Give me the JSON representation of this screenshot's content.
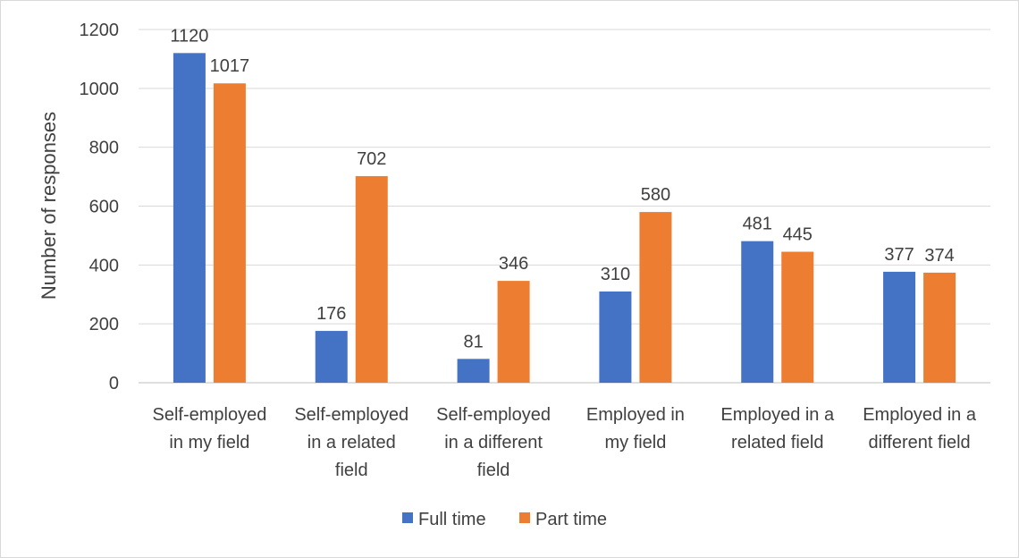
{
  "chart_data": {
    "type": "bar",
    "title": "",
    "xlabel": "",
    "ylabel": "Number of responses",
    "ylim": [
      0,
      1200
    ],
    "yticks": [
      0,
      200,
      400,
      600,
      800,
      1000,
      1200
    ],
    "grid": true,
    "legend_position": "bottom",
    "categories": [
      [
        "Self-employed",
        "in my field"
      ],
      [
        "Self-employed",
        "in a related",
        "field"
      ],
      [
        "Self-employed",
        "in a different",
        "field"
      ],
      [
        "Employed in",
        "my field"
      ],
      [
        "Employed in a",
        "related field"
      ],
      [
        "Employed in a",
        "different field"
      ]
    ],
    "series": [
      {
        "name": "Full time",
        "color": "#4472C4",
        "values": [
          1120,
          176,
          81,
          310,
          481,
          377
        ]
      },
      {
        "name": "Part time",
        "color": "#ED7D31",
        "values": [
          1017,
          702,
          346,
          580,
          445,
          374
        ]
      }
    ]
  }
}
